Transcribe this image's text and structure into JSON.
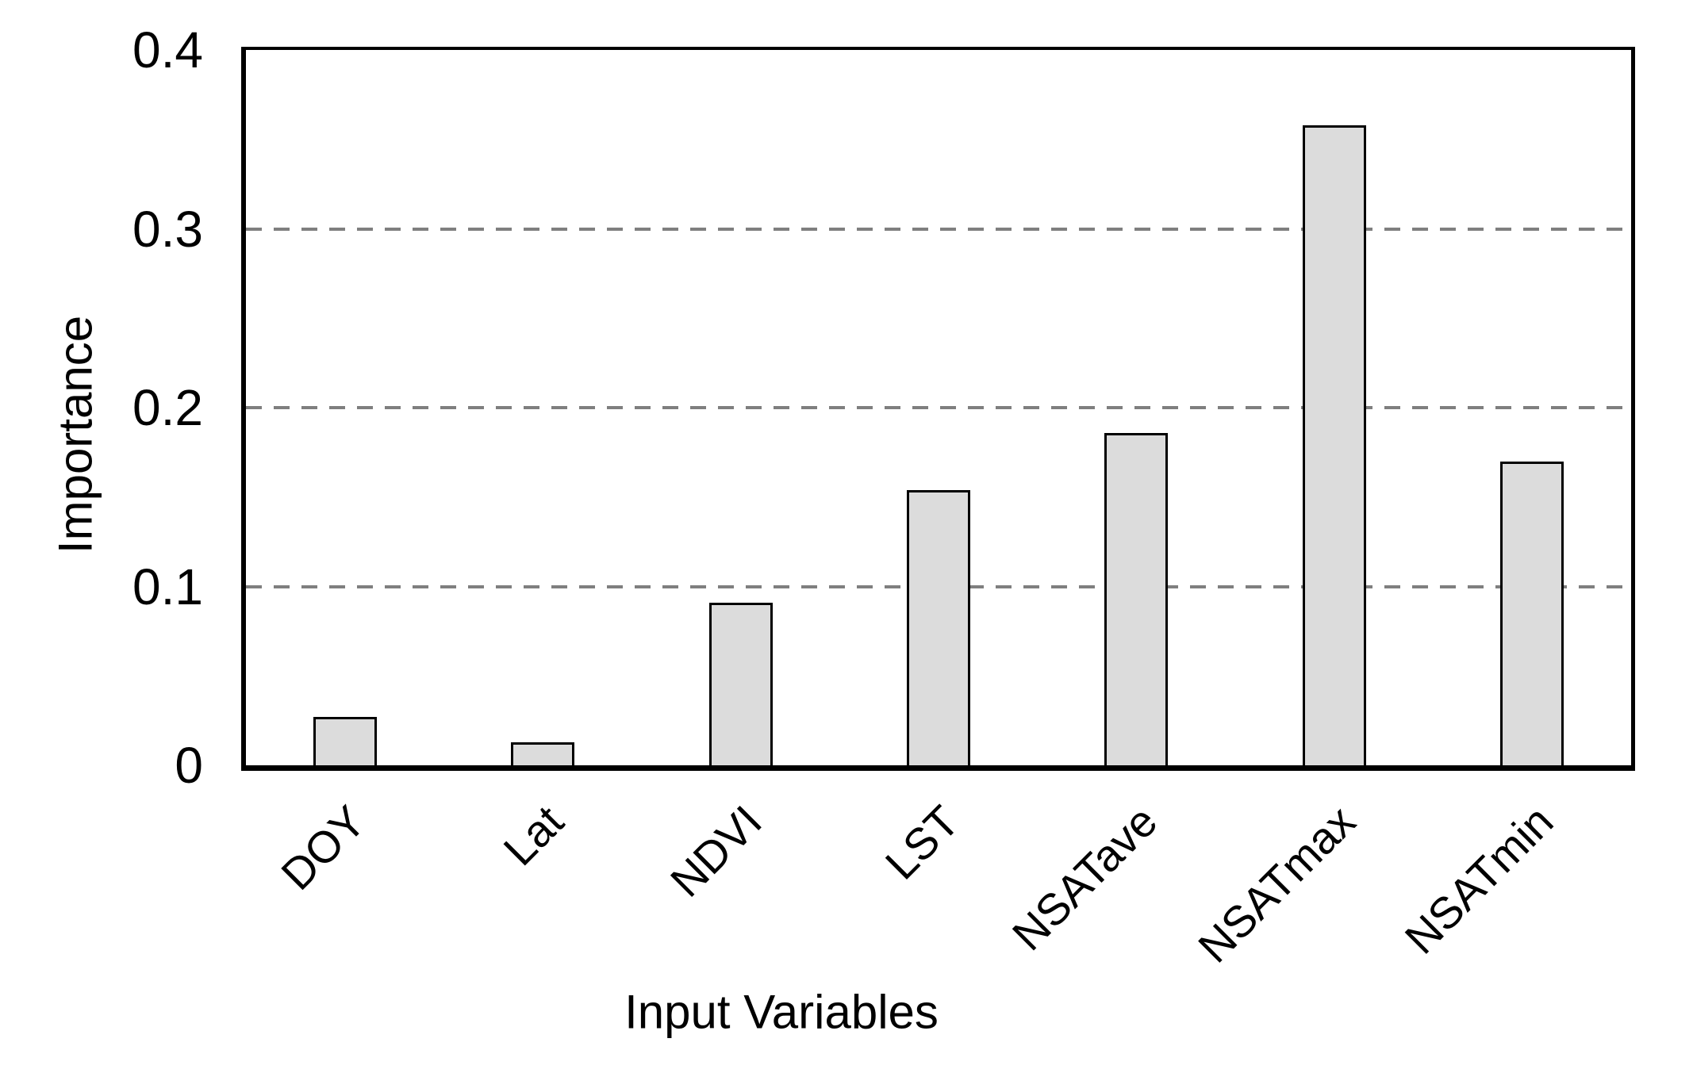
{
  "chart_data": {
    "type": "bar",
    "title": "",
    "categories": [
      "DOY",
      "Lat",
      "NDVI",
      "LST",
      "NSATave",
      "NSATmax",
      "NSATmin"
    ],
    "values": [
      0.027,
      0.013,
      0.091,
      0.154,
      0.186,
      0.358,
      0.17
    ],
    "xlabel": "Input Variables",
    "ylabel": "Importance",
    "ylim": [
      0,
      0.4
    ],
    "yticks": [
      0,
      0.1,
      0.2,
      0.3,
      0.4
    ],
    "ytick_labels": [
      "0",
      "0.1",
      "0.2",
      "0.3",
      "0.4"
    ],
    "gridlines": [
      0.1,
      0.2,
      0.3
    ],
    "grid_style": "dashed",
    "legend_position": "none",
    "x_tick_rotation_deg": 45,
    "colors": {
      "bar_fill": "#dcdcdc",
      "bar_border": "#000000",
      "grid_color": "#7f7f7f",
      "axis_color": "#000000",
      "background": "#ffffff",
      "text": "#000000"
    }
  }
}
